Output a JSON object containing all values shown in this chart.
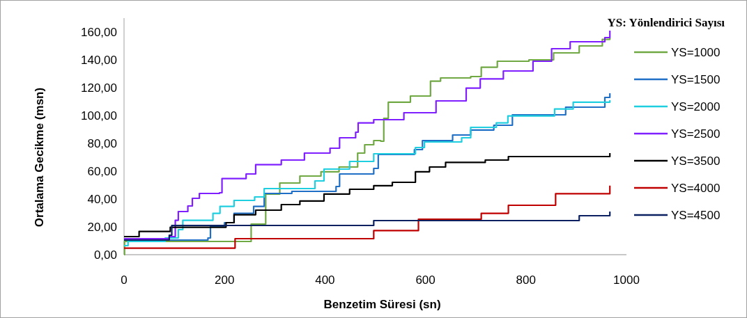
{
  "chart_data": {
    "type": "step",
    "xlabel": "Benzetim Süresi (sn)",
    "ylabel": "Ortalama Gecikme (msn)",
    "legend_title": "YS: Yönlendirici Sayısı",
    "legend": "right",
    "grid": false,
    "xlim": [
      0,
      1000
    ],
    "xticks": [
      0,
      200,
      400,
      600,
      800,
      1000
    ],
    "ylim": [
      0,
      170
    ],
    "yticks": [
      {
        "value": 0,
        "label": "0,00"
      },
      {
        "value": 20,
        "label": "20,00"
      },
      {
        "value": 40,
        "label": "40,00"
      },
      {
        "value": 60,
        "label": "60,00"
      },
      {
        "value": 80,
        "label": "80,00"
      },
      {
        "value": 100,
        "label": "100,00"
      },
      {
        "value": 120,
        "label": "120,00"
      },
      {
        "value": 140,
        "label": "140,00"
      },
      {
        "value": 160,
        "label": "160,00"
      }
    ],
    "series": [
      {
        "name": "YS=1000",
        "color": "#70a844",
        "x": [
          0,
          1,
          253,
          282,
          310,
          350,
          392,
          428,
          465,
          479,
          497,
          511,
          517,
          526,
          570,
          610,
          630,
          690,
          711,
          743,
          806,
          855,
          906,
          952,
          967
        ],
        "values": [
          0,
          9.5,
          22,
          43.5,
          51.5,
          56.5,
          59.6,
          63,
          73,
          79,
          82,
          81.5,
          98,
          109.6,
          114,
          124.7,
          127,
          128,
          134.7,
          139,
          140,
          145,
          150,
          154.7,
          156
        ]
      },
      {
        "name": "YS=1500",
        "color": "#1f6fc6",
        "x": [
          0,
          167,
          172,
          200,
          219,
          258,
          279,
          334,
          422,
          429,
          497,
          506,
          578,
          594,
          654,
          690,
          736,
          773,
          879,
          957,
          967
        ],
        "values": [
          10.5,
          12,
          20.5,
          23,
          29.7,
          34.7,
          44,
          45.5,
          49,
          58,
          62,
          72,
          75.5,
          82,
          86,
          89.6,
          93,
          100.5,
          106,
          113,
          116
        ]
      },
      {
        "name": "YS=2000",
        "color": "#1fcfdf",
        "x": [
          0,
          8,
          82,
          108,
          117,
          177,
          191,
          219,
          260,
          279,
          380,
          398,
          449,
          497,
          580,
          598,
          672,
          690,
          741,
          764,
          857,
          894,
          967
        ],
        "values": [
          6.5,
          9.6,
          12,
          18,
          24.7,
          29.7,
          34.7,
          39,
          41.5,
          47.5,
          53,
          61.5,
          67,
          72.5,
          77,
          81,
          84,
          91.5,
          94.7,
          99.7,
          104.7,
          109.6,
          111
        ]
      },
      {
        "name": "YS=2500",
        "color": "#7f1fff",
        "x": [
          0,
          90,
          102,
          108,
          127,
          136,
          150,
          190,
          195,
          243,
          262,
          313,
          359,
          410,
          429,
          461,
          466,
          497,
          557,
          621,
          681,
          709,
          755,
          814,
          851,
          888,
          957,
          967
        ],
        "values": [
          11.5,
          13,
          24.7,
          31,
          35,
          40.5,
          44,
          44.5,
          54.7,
          58,
          64.7,
          68,
          73,
          76.5,
          84,
          88,
          94.7,
          97,
          102,
          110.5,
          119.7,
          126.3,
          132,
          139,
          148,
          153,
          156,
          161
        ]
      },
      {
        "name": "YS=3500",
        "color": "#000000",
        "x": [
          0,
          30,
          92,
          203,
          219,
          262,
          313,
          350,
          398,
          449,
          497,
          534,
          580,
          608,
          640,
          719,
          765,
          967
        ],
        "values": [
          13,
          16.7,
          19.7,
          23,
          28.7,
          32,
          36,
          38.6,
          43.6,
          47,
          49.6,
          52,
          59.6,
          63,
          66.3,
          68,
          70.5,
          73
        ]
      },
      {
        "name": "YS=4000",
        "color": "#c00000",
        "x": [
          0,
          221,
          497,
          586,
          711,
          765,
          859,
          967
        ],
        "values": [
          4.7,
          11.5,
          17.3,
          25.5,
          29.7,
          35.5,
          43.8,
          49.6
        ]
      },
      {
        "name": "YS=4500",
        "color": "#0a2060",
        "x": [
          0,
          90,
          95,
          497,
          906,
          967
        ],
        "values": [
          10.5,
          14,
          21,
          24.5,
          28,
          31
        ]
      }
    ]
  }
}
